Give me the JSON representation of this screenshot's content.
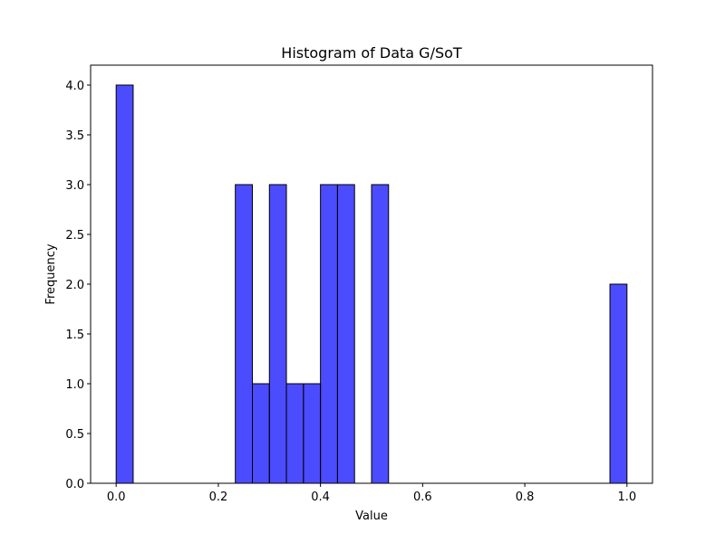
{
  "chart_data": {
    "type": "bar",
    "title": "Histogram of Data G/SoT",
    "xlabel": "Value",
    "ylabel": "Frequency",
    "xlim": [
      -0.05,
      1.05
    ],
    "ylim": [
      0,
      4.2
    ],
    "bar_color": "#0000ff",
    "bar_opacity": 0.7,
    "edge_color": "#000000",
    "grid": false,
    "x_ticks": [
      0.0,
      0.2,
      0.4,
      0.6,
      0.8,
      1.0
    ],
    "x_tick_labels": [
      "0.0",
      "0.2",
      "0.4",
      "0.6",
      "0.8",
      "1.0"
    ],
    "y_ticks": [
      0.0,
      0.5,
      1.0,
      1.5,
      2.0,
      2.5,
      3.0,
      3.5,
      4.0
    ],
    "y_tick_labels": [
      "0.0",
      "0.5",
      "1.0",
      "1.5",
      "2.0",
      "2.5",
      "3.0",
      "3.5",
      "4.0"
    ],
    "bins": [
      {
        "x0": 0.0,
        "x1": 0.0333,
        "count": 4
      },
      {
        "x0": 0.2333,
        "x1": 0.2667,
        "count": 3
      },
      {
        "x0": 0.2667,
        "x1": 0.3,
        "count": 1
      },
      {
        "x0": 0.3,
        "x1": 0.3333,
        "count": 3
      },
      {
        "x0": 0.3333,
        "x1": 0.3667,
        "count": 1
      },
      {
        "x0": 0.3667,
        "x1": 0.4,
        "count": 1
      },
      {
        "x0": 0.4,
        "x1": 0.4333,
        "count": 3
      },
      {
        "x0": 0.4333,
        "x1": 0.4667,
        "count": 3
      },
      {
        "x0": 0.5,
        "x1": 0.5333,
        "count": 3
      },
      {
        "x0": 0.9667,
        "x1": 1.0,
        "count": 2
      }
    ]
  }
}
